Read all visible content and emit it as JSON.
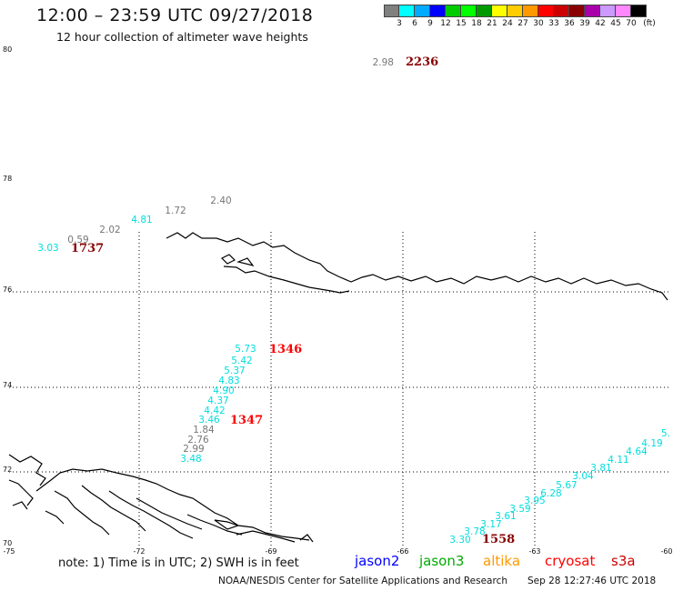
{
  "title": "12:00 – 23:59 UTC 09/27/2018",
  "subtitle": "12 hour collection of altimeter wave heights",
  "legend": {
    "colors": [
      "#808080",
      "#00ffff",
      "#00aaff",
      "#0000ff",
      "#00cc00",
      "#00ff00",
      "#009900",
      "#ffff00",
      "#ffcc00",
      "#ff9900",
      "#ff0000",
      "#cc0000",
      "#880000",
      "#aa00aa",
      "#cc99ff",
      "#ff88ff",
      "#000000"
    ],
    "ticks": [
      "3",
      "6",
      "9",
      "12",
      "15",
      "18",
      "21",
      "24",
      "27",
      "30",
      "33",
      "36",
      "39",
      "42",
      "45",
      "70",
      "(ft)"
    ]
  },
  "axes": {
    "lat_labels": [
      "80",
      "78",
      "76",
      "74",
      "72",
      "70"
    ],
    "lon_labels": [
      "-75",
      "-72",
      "-69",
      "-66",
      "-63",
      "-60"
    ]
  },
  "observations": [
    {
      "text": "2.98",
      "color": "#777777"
    },
    {
      "text": "2236",
      "color": "#880000",
      "bold": true
    },
    {
      "text": "2.40",
      "color": "#777777"
    },
    {
      "text": "1.72",
      "color": "#777777"
    },
    {
      "text": "4.81",
      "color": "#00dddd"
    },
    {
      "text": "2.02",
      "color": "#777777"
    },
    {
      "text": "0.59",
      "color": "#777777"
    },
    {
      "text": "3.03",
      "color": "#00dddd"
    },
    {
      "text": "1737",
      "color": "#880000",
      "bold": true
    },
    {
      "text": "5.73",
      "color": "#00dddd"
    },
    {
      "text": "1346",
      "color": "#ff0000",
      "bold": true
    },
    {
      "text": "5.42",
      "color": "#00dddd"
    },
    {
      "text": "5.37",
      "color": "#00dddd"
    },
    {
      "text": "4.83",
      "color": "#00dddd"
    },
    {
      "text": "4.90",
      "color": "#00dddd"
    },
    {
      "text": "4.37",
      "color": "#00dddd"
    },
    {
      "text": "4.42",
      "color": "#00dddd"
    },
    {
      "text": "3.46",
      "color": "#00dddd"
    },
    {
      "text": "1347",
      "color": "#ff0000",
      "bold": true
    },
    {
      "text": "1.84",
      "color": "#777777"
    },
    {
      "text": "2.76",
      "color": "#777777"
    },
    {
      "text": "2.99",
      "color": "#777777"
    },
    {
      "text": "3.48",
      "color": "#00dddd"
    },
    {
      "text": "5.",
      "color": "#00dddd"
    },
    {
      "text": "4.19",
      "color": "#00dddd"
    },
    {
      "text": "4.64",
      "color": "#00dddd"
    },
    {
      "text": "4.11",
      "color": "#00dddd"
    },
    {
      "text": "3.81",
      "color": "#00dddd"
    },
    {
      "text": "3.04",
      "color": "#00dddd"
    },
    {
      "text": "5.67",
      "color": "#00dddd"
    },
    {
      "text": "6.28",
      "color": "#00dddd"
    },
    {
      "text": "3.95",
      "color": "#00dddd"
    },
    {
      "text": "3.59",
      "color": "#00dddd"
    },
    {
      "text": "3.61",
      "color": "#00dddd"
    },
    {
      "text": "3.17",
      "color": "#00dddd"
    },
    {
      "text": "3.78",
      "color": "#00dddd"
    },
    {
      "text": "3.30",
      "color": "#00dddd"
    },
    {
      "text": "1558",
      "color": "#880000",
      "bold": true
    }
  ],
  "note": "note: 1) Time is in UTC; 2) SWH is in feet",
  "satellites": [
    {
      "name": "jason2",
      "color": "#0000ff"
    },
    {
      "name": "jason3",
      "color": "#00aa00"
    },
    {
      "name": "altika",
      "color": "#ff9900"
    },
    {
      "name": "cryosat",
      "color": "#ff0000"
    },
    {
      "name": "s3a",
      "color": "#cc0000"
    }
  ],
  "footer": {
    "org": "NOAA/NESDIS Center for Satellite Applications and Research",
    "timestamp": "Sep 28 12:27:46 UTC 2018"
  }
}
